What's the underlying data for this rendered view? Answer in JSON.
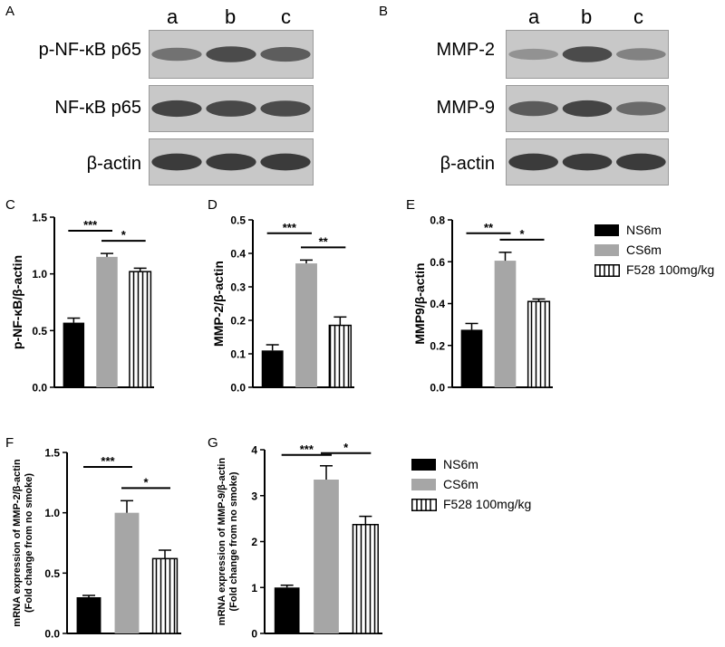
{
  "panel_letters": {
    "A": "A",
    "B": "B",
    "C": "C",
    "D": "D",
    "E": "E",
    "F": "F",
    "G": "G"
  },
  "blotA": {
    "lanes": [
      "a",
      "b",
      "c"
    ],
    "rows": [
      {
        "label": "p-NF-κB p65",
        "intensity": [
          0.55,
          0.8,
          0.68
        ]
      },
      {
        "label": "NF-κB p65",
        "intensity": [
          0.85,
          0.82,
          0.8
        ]
      },
      {
        "label": "β-actin",
        "intensity": [
          0.9,
          0.9,
          0.9
        ]
      }
    ]
  },
  "blotB": {
    "lanes": [
      "a",
      "b",
      "c"
    ],
    "rows": [
      {
        "label": "MMP-2",
        "intensity": [
          0.35,
          0.8,
          0.45
        ]
      },
      {
        "label": "MMP-9",
        "intensity": [
          0.7,
          0.85,
          0.6
        ]
      },
      {
        "label": "β-actin",
        "intensity": [
          0.9,
          0.9,
          0.9
        ]
      }
    ]
  },
  "legend": {
    "items": [
      {
        "label": "NS6m",
        "fill": "black"
      },
      {
        "label": "CS6m",
        "fill": "gray"
      },
      {
        "label": "F528 100mg/kg",
        "fill": "stripes"
      }
    ]
  },
  "colors": {
    "ns": "#000000",
    "cs": "#a6a6a6",
    "f528": "#ffffff"
  },
  "chart_data": [
    {
      "id": "C",
      "type": "bar",
      "categories": [
        "NS6m",
        "CS6m",
        "F528 100mg/kg"
      ],
      "values": [
        0.57,
        1.15,
        1.02
      ],
      "errors": [
        0.04,
        0.03,
        0.03
      ],
      "ylabel": "p-NF-κB/β-actin",
      "ylim": [
        0,
        1.5
      ],
      "yticks": [
        "0.0",
        "0.5",
        "1.0",
        "1.5"
      ],
      "sig": [
        "***",
        "*"
      ]
    },
    {
      "id": "D",
      "type": "bar",
      "categories": [
        "NS6m",
        "CS6m",
        "F528 100mg/kg"
      ],
      "values": [
        0.11,
        0.37,
        0.185
      ],
      "errors": [
        0.017,
        0.01,
        0.025
      ],
      "ylabel": "MMP-2/β-actin",
      "ylim": [
        0,
        0.5
      ],
      "yticks": [
        "0.0",
        "0.1",
        "0.2",
        "0.3",
        "0.4",
        "0.5"
      ],
      "sig": [
        "***",
        "**"
      ]
    },
    {
      "id": "E",
      "type": "bar",
      "categories": [
        "NS6m",
        "CS6m",
        "F528 100mg/kg"
      ],
      "values": [
        0.275,
        0.605,
        0.41
      ],
      "errors": [
        0.03,
        0.04,
        0.012
      ],
      "ylabel": "MMP9/β-actin",
      "ylim": [
        0,
        0.8
      ],
      "yticks": [
        "0.0",
        "0.2",
        "0.4",
        "0.6",
        "0.8"
      ],
      "sig": [
        "**",
        "*"
      ]
    },
    {
      "id": "F",
      "type": "bar",
      "categories": [
        "NS6m",
        "CS6m",
        "F528 100mg/kg"
      ],
      "values": [
        0.3,
        1.0,
        0.62
      ],
      "errors": [
        0.015,
        0.1,
        0.07
      ],
      "ylabel": "mRNA expression of MMP-2/β-actin",
      "ylabel2": "(Fold change from no smoke)",
      "ylim": [
        0,
        1.5
      ],
      "yticks": [
        "0.0",
        "0.5",
        "1.0",
        "1.5"
      ],
      "sig": [
        "***",
        "*"
      ]
    },
    {
      "id": "G",
      "type": "bar",
      "categories": [
        "NS6m",
        "CS6m",
        "F528 100mg/kg"
      ],
      "values": [
        1.0,
        3.35,
        2.37
      ],
      "errors": [
        0.05,
        0.3,
        0.18
      ],
      "ylabel": "mRNA expression of MMP-9/β-actin",
      "ylabel2": "(Fold change from no smoke)",
      "ylim": [
        0,
        4
      ],
      "yticks": [
        "0",
        "1",
        "2",
        "3",
        "4"
      ],
      "sig": [
        "***",
        "*"
      ]
    }
  ]
}
